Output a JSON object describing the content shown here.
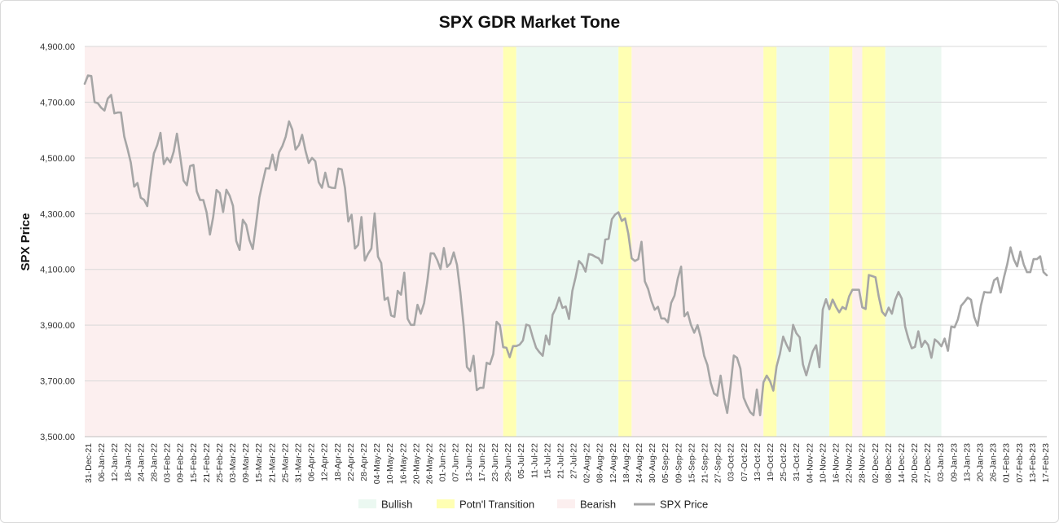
{
  "chart_data": {
    "type": "line",
    "title": "SPX GDR Market Tone",
    "xlabel": "",
    "ylabel": "SPX Price",
    "ylim": [
      3500,
      4900
    ],
    "yticks": [
      "3,500.00",
      "3,700.00",
      "3,900.00",
      "4,100.00",
      "4,300.00",
      "4,500.00",
      "4,700.00",
      "4,900.00"
    ],
    "ytick_values": [
      3500,
      3700,
      3900,
      4100,
      4300,
      4500,
      4700,
      4900
    ],
    "grid": true,
    "legend_position": "bottom",
    "legend": [
      {
        "name": "Bullish",
        "kind": "area",
        "color": "#ebf8f1"
      },
      {
        "name": "Potn'l Transition",
        "kind": "area",
        "color": "#ffffb3"
      },
      {
        "name": "Bearish",
        "kind": "area",
        "color": "#fcefef"
      },
      {
        "name": "SPX Price",
        "kind": "line",
        "color": "#a6a6a6"
      }
    ],
    "x_ticks": [
      "31-Dec-21",
      "06-Jan-22",
      "12-Jan-22",
      "18-Jan-22",
      "24-Jan-22",
      "28-Jan-22",
      "03-Feb-22",
      "09-Feb-22",
      "15-Feb-22",
      "21-Feb-22",
      "25-Feb-22",
      "03-Mar-22",
      "09-Mar-22",
      "15-Mar-22",
      "21-Mar-22",
      "25-Mar-22",
      "31-Mar-22",
      "06-Apr-22",
      "12-Apr-22",
      "18-Apr-22",
      "22-Apr-22",
      "28-Apr-22",
      "04-May-22",
      "10-May-22",
      "16-May-22",
      "20-May-22",
      "26-May-22",
      "01-Jun-22",
      "07-Jun-22",
      "13-Jun-22",
      "17-Jun-22",
      "23-Jun-22",
      "29-Jun-22",
      "05-Jul-22",
      "11-Jul-22",
      "15-Jul-22",
      "21-Jul-22",
      "27-Jul-22",
      "02-Aug-22",
      "08-Aug-22",
      "12-Aug-22",
      "18-Aug-22",
      "24-Aug-22",
      "30-Aug-22",
      "05-Sep-22",
      "09-Sep-22",
      "15-Sep-22",
      "21-Sep-22",
      "27-Sep-22",
      "03-Oct-22",
      "07-Oct-22",
      "13-Oct-22",
      "19-Oct-22",
      "25-Oct-22",
      "31-Oct-22",
      "04-Nov-22",
      "10-Nov-22",
      "16-Nov-22",
      "22-Nov-22",
      "28-Nov-22",
      "02-Dec-22",
      "08-Dec-22",
      "14-Dec-22",
      "20-Dec-22",
      "27-Dec-22",
      "03-Jan-23",
      "09-Jan-23",
      "13-Jan-23",
      "20-Jan-23",
      "26-Jan-23",
      "01-Feb-23",
      "07-Feb-23",
      "13-Feb-23",
      "17-Feb-23"
    ],
    "regions": [
      {
        "tone": "Bearish",
        "start": 0,
        "end": 127
      },
      {
        "tone": "Potn'l Transition",
        "start": 127,
        "end": 131
      },
      {
        "tone": "Bullish",
        "start": 131,
        "end": 162
      },
      {
        "tone": "Potn'l Transition",
        "start": 162,
        "end": 166
      },
      {
        "tone": "Bearish",
        "start": 166,
        "end": 206
      },
      {
        "tone": "Potn'l Transition",
        "start": 206,
        "end": 210
      },
      {
        "tone": "Bullish",
        "start": 210,
        "end": 226
      },
      {
        "tone": "Potn'l Transition",
        "start": 226,
        "end": 233
      },
      {
        "tone": "Bearish",
        "start": 233,
        "end": 236
      },
      {
        "tone": "Potn'l Transition",
        "start": 236,
        "end": 243
      },
      {
        "tone": "Bullish",
        "start": 243,
        "end": 260
      }
    ],
    "series": [
      {
        "name": "SPX Price",
        "values": [
          4766,
          4796,
          4794,
          4700,
          4696,
          4680,
          4670,
          4713,
          4726,
          4660,
          4663,
          4663,
          4577,
          4532,
          4483,
          4397,
          4410,
          4357,
          4350,
          4327,
          4432,
          4516,
          4546,
          4590,
          4478,
          4500,
          4484,
          4522,
          4587,
          4504,
          4419,
          4402,
          4471,
          4475,
          4380,
          4349,
          4349,
          4305,
          4225,
          4288,
          4385,
          4374,
          4306,
          4386,
          4364,
          4328,
          4202,
          4170,
          4278,
          4260,
          4205,
          4173,
          4262,
          4358,
          4412,
          4463,
          4462,
          4512,
          4456,
          4520,
          4543,
          4576,
          4631,
          4602,
          4530,
          4546,
          4583,
          4526,
          4482,
          4500,
          4488,
          4413,
          4393,
          4447,
          4397,
          4393,
          4392,
          4462,
          4459,
          4392,
          4272,
          4296,
          4175,
          4188,
          4288,
          4132,
          4156,
          4175,
          4301,
          4146,
          4123,
          3991,
          3999,
          3935,
          3930,
          4023,
          4009,
          4088,
          3923,
          3901,
          3901,
          3973,
          3941,
          3979,
          4058,
          4158,
          4157,
          4133,
          4101,
          4177,
          4109,
          4122,
          4161,
          4116,
          4018,
          3900,
          3750,
          3735,
          3790,
          3667,
          3675,
          3675,
          3765,
          3760,
          3796,
          3912,
          3900,
          3821,
          3819,
          3785,
          3825,
          3825,
          3830,
          3845,
          3902,
          3898,
          3855,
          3819,
          3803,
          3790,
          3863,
          3831,
          3937,
          3961,
          3999,
          3962,
          3967,
          3922,
          4023,
          4072,
          4130,
          4118,
          4092,
          4155,
          4152,
          4145,
          4140,
          4122,
          4207,
          4210,
          4280,
          4297,
          4305,
          4274,
          4283,
          4228,
          4140,
          4130,
          4137,
          4199,
          4057,
          4030,
          3986,
          3955,
          3966,
          3924,
          3924,
          3910,
          3980,
          4006,
          4067,
          4110,
          3932,
          3946,
          3901,
          3873,
          3900,
          3855,
          3790,
          3757,
          3693,
          3655,
          3647,
          3719,
          3640,
          3585,
          3678,
          3791,
          3783,
          3744,
          3640,
          3612,
          3588,
          3577,
          3669,
          3577,
          3695,
          3719,
          3699,
          3665,
          3752,
          3797,
          3859,
          3830,
          3807,
          3901,
          3871,
          3856,
          3759,
          3720,
          3764,
          3806,
          3828,
          3749,
          3956,
          3993,
          3957,
          3992,
          3966,
          3946,
          3965,
          3957,
          4003,
          4027,
          4027,
          4027,
          3964,
          3958,
          4080,
          4076,
          4072,
          4003,
          3948,
          3934,
          3963,
          3941,
          3991,
          4019,
          3995,
          3895,
          3852,
          3817,
          3822,
          3878,
          3822,
          3844,
          3829,
          3783,
          3849,
          3839,
          3824,
          3852,
          3808,
          3895,
          3892,
          3920,
          3969,
          3983,
          3999,
          3991,
          3929,
          3898,
          3970,
          4019,
          4017,
          4017,
          4061,
          4070,
          4017,
          4071,
          4119,
          4179,
          4136,
          4111,
          4164,
          4118,
          4090,
          4090,
          4137,
          4137,
          4147,
          4090,
          4079
        ]
      }
    ]
  }
}
